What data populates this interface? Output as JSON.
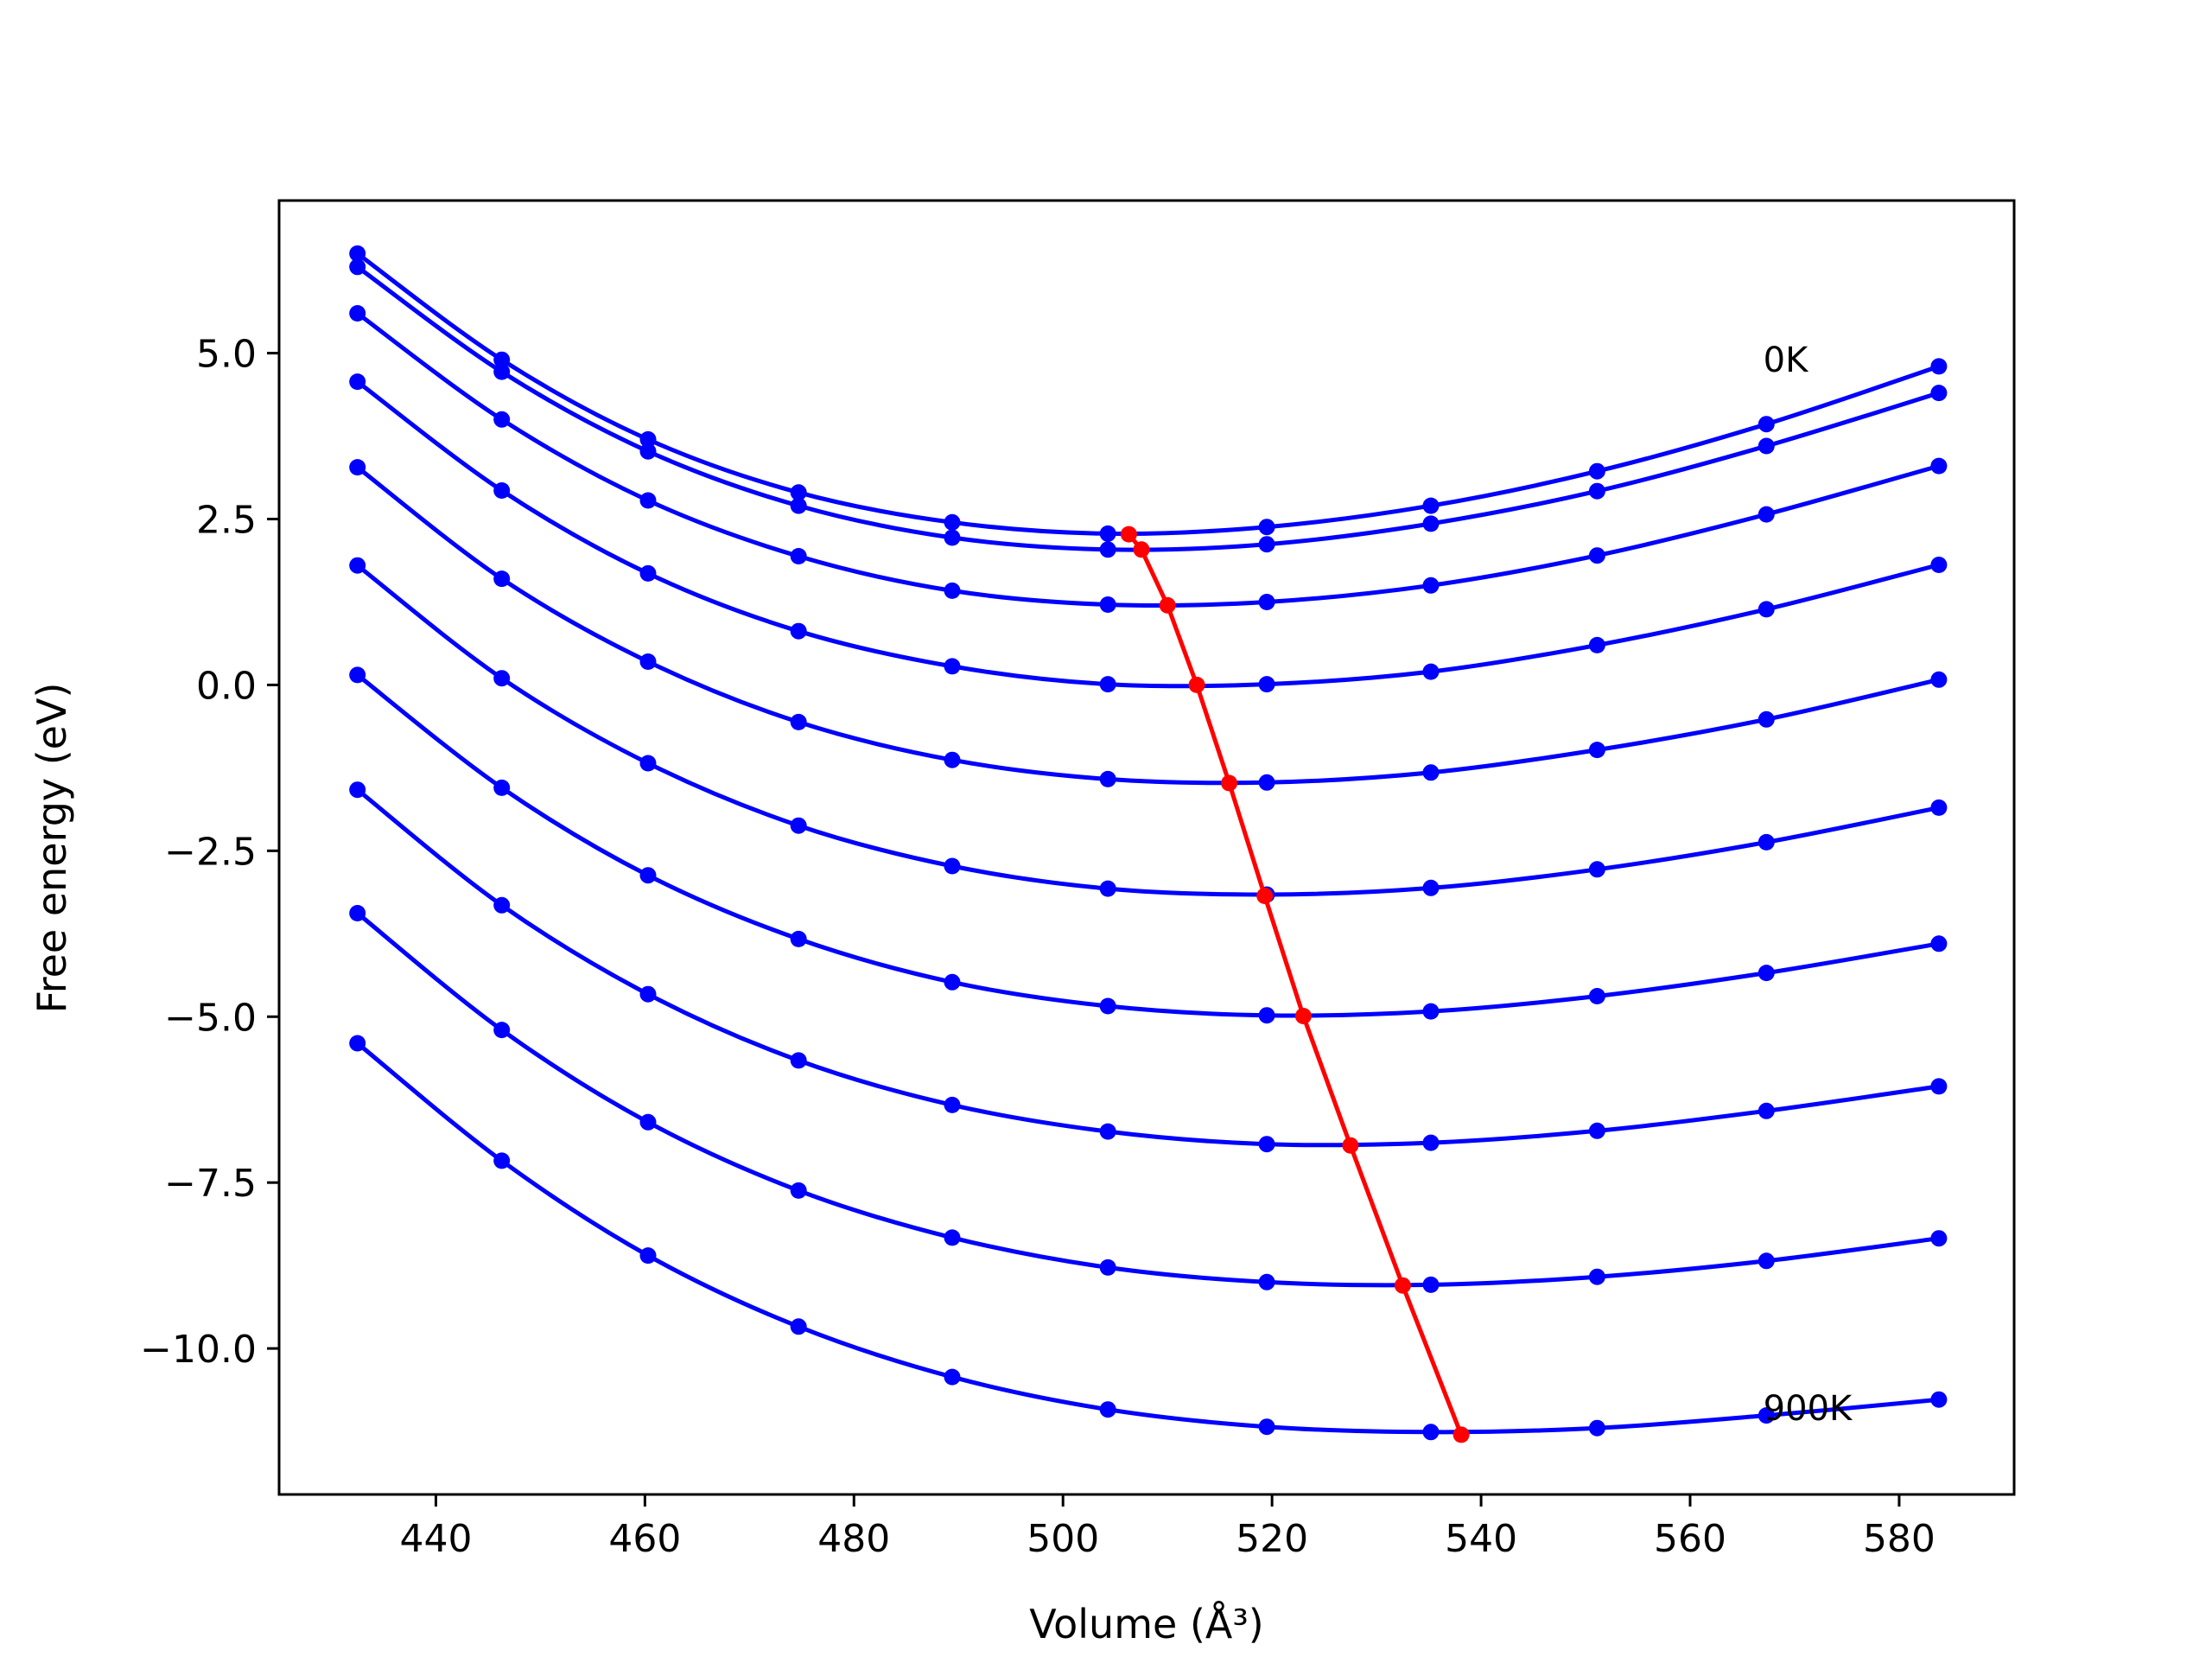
{
  "chart_data": {
    "type": "line",
    "title": "",
    "xlabel": "Volume (Å³)",
    "ylabel": "Free energy (eV)",
    "xlim": [
      425,
      591
    ],
    "ylim": [
      -12.2,
      7.3
    ],
    "grid": false,
    "legend": "none",
    "x_ticks": [
      440,
      460,
      480,
      500,
      520,
      540,
      560,
      580
    ],
    "y_ticks": [
      5.0,
      2.5,
      0.0,
      -2.5,
      -5.0,
      -7.5,
      -10.0
    ],
    "x_tick_labels": [
      "440",
      "460",
      "480",
      "500",
      "520",
      "540",
      "560",
      "580"
    ],
    "y_tick_labels": [
      "5.0",
      "2.5",
      "0.0",
      "−2.5",
      "−5.0",
      "−7.5",
      "−10.0"
    ],
    "annotations": [
      {
        "text": "0K",
        "x": 567.0,
        "y": 4.9
      },
      {
        "text": "900K",
        "x": 567.0,
        "y": -10.9
      }
    ],
    "x": [
      432.5,
      446.3,
      460.3,
      474.7,
      489.4,
      504.3,
      519.5,
      535.2,
      551.1,
      567.3,
      583.8
    ],
    "series": [
      {
        "values": [
          6.5,
          4.9,
          3.7,
          2.9,
          2.45,
          2.28,
          2.38,
          2.7,
          3.22,
          3.93,
          4.8
        ]
      },
      {
        "values": [
          6.3,
          4.72,
          3.52,
          2.7,
          2.22,
          2.04,
          2.12,
          2.43,
          2.92,
          3.6,
          4.4
        ]
      },
      {
        "values": [
          5.6,
          4.0,
          2.78,
          1.94,
          1.42,
          1.21,
          1.25,
          1.5,
          1.95,
          2.57,
          3.3
        ]
      },
      {
        "values": [
          4.57,
          2.93,
          1.68,
          0.81,
          0.28,
          0.01,
          0.01,
          0.2,
          0.6,
          1.14,
          1.81
        ]
      },
      {
        "values": [
          3.28,
          1.6,
          0.35,
          -0.56,
          -1.13,
          -1.42,
          -1.47,
          -1.32,
          -0.98,
          -0.52,
          0.08
        ]
      },
      {
        "values": [
          1.8,
          0.1,
          -1.18,
          -2.12,
          -2.73,
          -3.07,
          -3.16,
          -3.06,
          -2.78,
          -2.37,
          -1.85
        ]
      },
      {
        "values": [
          0.15,
          -1.55,
          -2.87,
          -3.83,
          -4.48,
          -4.84,
          -4.98,
          -4.92,
          -4.69,
          -4.34,
          -3.9
        ]
      },
      {
        "values": [
          -1.58,
          -3.32,
          -4.66,
          -5.66,
          -6.33,
          -6.73,
          -6.92,
          -6.9,
          -6.72,
          -6.42,
          -6.05
        ]
      },
      {
        "values": [
          -3.44,
          -5.2,
          -6.59,
          -7.62,
          -8.33,
          -8.78,
          -9.0,
          -9.04,
          -8.92,
          -8.68,
          -8.34
        ]
      },
      {
        "values": [
          -5.4,
          -7.17,
          -8.6,
          -9.67,
          -10.43,
          -10.92,
          -11.18,
          -11.26,
          -11.2,
          -11.01,
          -10.77
        ]
      }
    ],
    "minimum_series": {
      "x": [
        506.3,
        507.5,
        510.0,
        512.8,
        515.9,
        519.3,
        523.0,
        527.5,
        532.5,
        538.1
      ],
      "y": [
        2.27,
        2.04,
        1.2,
        0.0,
        -1.48,
        -3.18,
        -4.99,
        -6.94,
        -9.05,
        -11.3
      ]
    },
    "colors": {
      "curves": "#0000ff",
      "minimum_line": "#ff0000"
    }
  }
}
